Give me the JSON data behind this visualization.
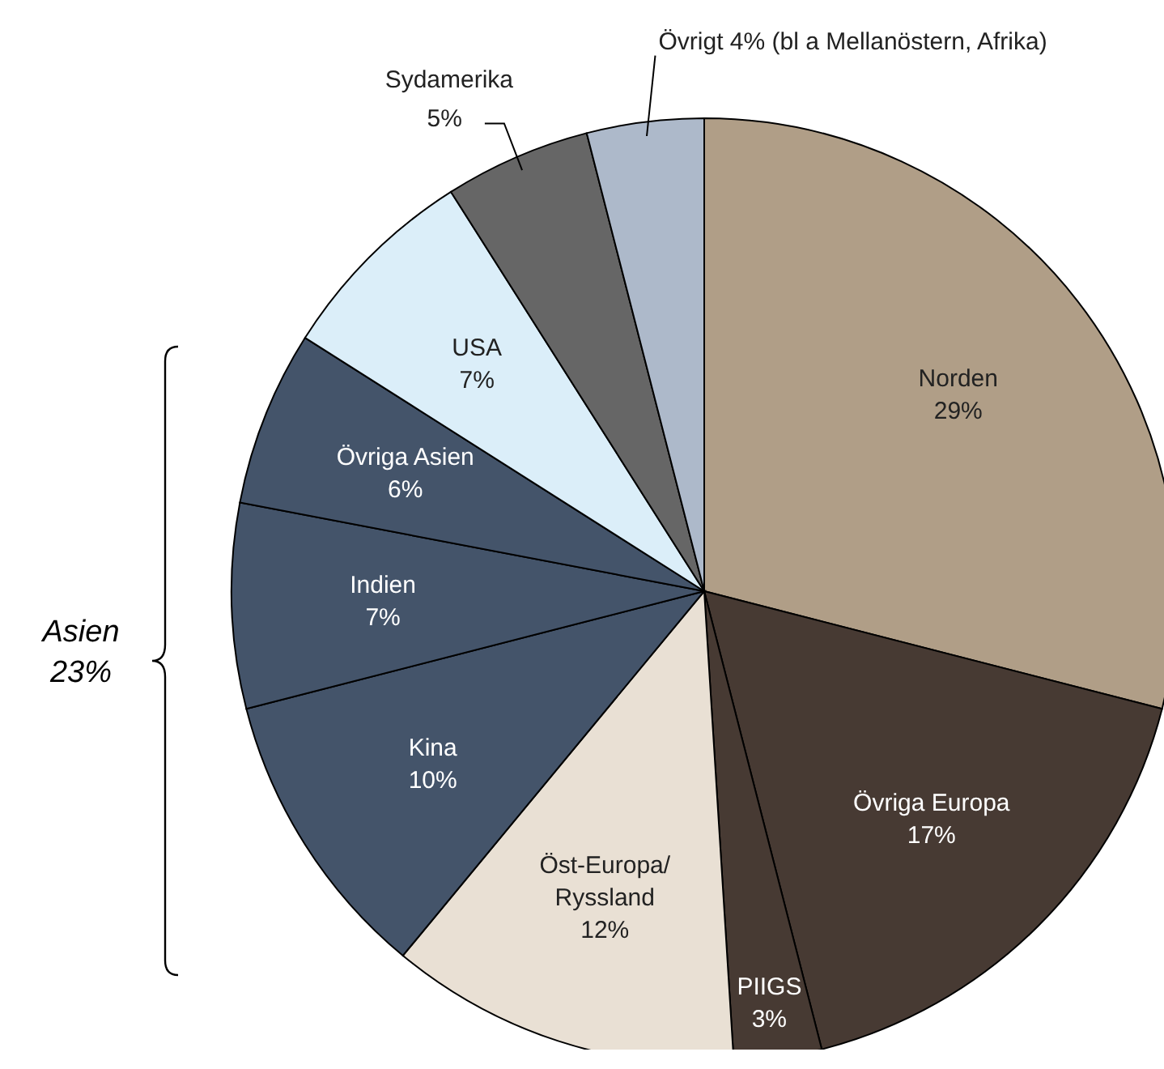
{
  "chart_data": {
    "type": "pie",
    "categories": [
      "Norden",
      "Övriga Europa",
      "PIIGS",
      "Öst-Europa/Ryssland",
      "Kina",
      "Indien",
      "Övriga Asien",
      "USA",
      "Sydamerika",
      "Övrigt"
    ],
    "values": [
      29,
      17,
      3,
      12,
      10,
      7,
      6,
      7,
      5,
      4
    ],
    "value_labels": [
      "29%",
      "17%",
      "3%",
      "12%",
      "10%",
      "7%",
      "6%",
      "7%",
      "5%",
      "4%"
    ],
    "colors": [
      "#b09e87",
      "#473a33",
      "#473a33",
      "#e9e0d4",
      "#44546a",
      "#44546a",
      "#44546a",
      "#dbeef9",
      "#666666",
      "#adb9ca"
    ],
    "annotations": [
      "(bl a Mellanöstern, Afrika)",
      "Asien 23%"
    ]
  }
}
